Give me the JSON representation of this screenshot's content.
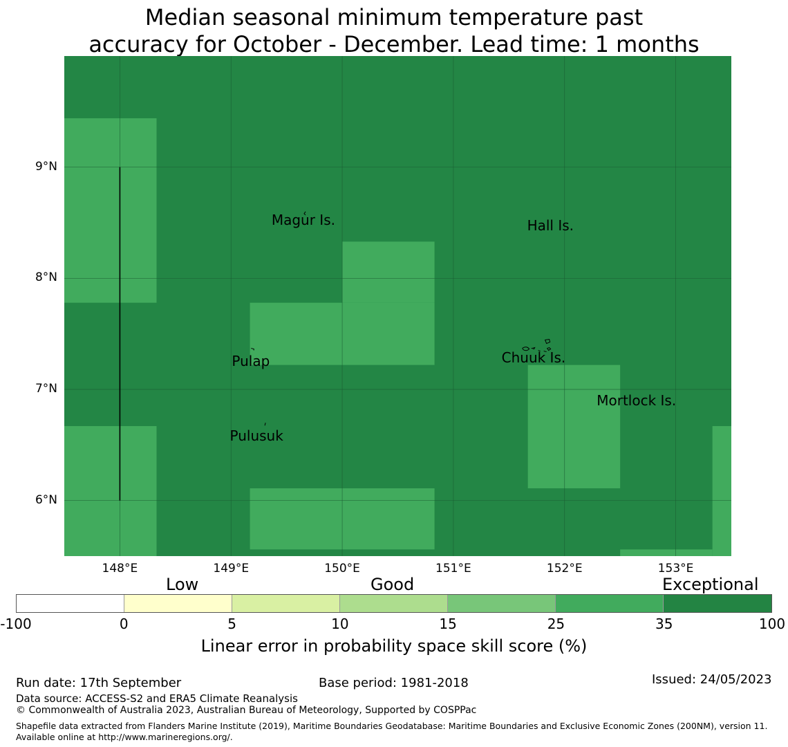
{
  "title": {
    "line1": "Median seasonal minimum temperature past",
    "line2": "accuracy for October - December. Lead time: 1 months"
  },
  "map": {
    "extent": {
      "lon": [
        147.5,
        153.5
      ],
      "lat": [
        5.5,
        10.0
      ]
    },
    "colors": {
      "exceptional": "#238645",
      "very_good": "#41ab5d",
      "coast": "#000000",
      "grid": "#1a5c32"
    },
    "lat_ticks": [
      {
        "value": 9,
        "label": "9°N"
      },
      {
        "value": 8,
        "label": "8°N"
      },
      {
        "value": 7,
        "label": "7°N"
      },
      {
        "value": 6,
        "label": "6°N"
      }
    ],
    "lon_ticks": [
      {
        "value": 148,
        "label": "148°E"
      },
      {
        "value": 149,
        "label": "149°E"
      },
      {
        "value": 150,
        "label": "150°E"
      },
      {
        "value": 151,
        "label": "151°E"
      },
      {
        "value": 152,
        "label": "152°E"
      },
      {
        "value": 153,
        "label": "153°E"
      }
    ],
    "cells_25_35": [
      {
        "lon": [
          147.5,
          148.33
        ],
        "lat": [
          7.78,
          9.44
        ]
      },
      {
        "lon": [
          149.17,
          150.83
        ],
        "lat": [
          7.22,
          7.78
        ]
      },
      {
        "lon": [
          150.0,
          150.83
        ],
        "lat": [
          7.78,
          8.33
        ]
      },
      {
        "lon": [
          147.5,
          148.33
        ],
        "lat": [
          5.5,
          6.67
        ]
      },
      {
        "lon": [
          149.17,
          150.83
        ],
        "lat": [
          5.56,
          6.11
        ]
      },
      {
        "lon": [
          151.67,
          152.5
        ],
        "lat": [
          6.11,
          7.22
        ]
      },
      {
        "lon": [
          152.5,
          153.33
        ],
        "lat": [
          5.5,
          5.56
        ]
      },
      {
        "lon": [
          153.33,
          153.5
        ],
        "lat": [
          5.5,
          6.67
        ]
      }
    ],
    "boundary_line": {
      "lon": 148,
      "lat": [
        6,
        9
      ]
    },
    "places": [
      {
        "name": "Magur Is.",
        "lon": 149.7,
        "lat": 8.6
      },
      {
        "name": "Hall Is.",
        "lon": 151.8,
        "lat": 8.55
      },
      {
        "name": "Pulap",
        "lon": 149.2,
        "lat": 7.35
      },
      {
        "name": "Chuuk Is.",
        "lon": 151.85,
        "lat": 7.4
      },
      {
        "name": "Mortlock Is.",
        "lon": 152.6,
        "lat": 7.0
      },
      {
        "name": "Pulusuk",
        "lon": 149.3,
        "lat": 6.68
      }
    ]
  },
  "legend": {
    "categories": [
      "Low",
      "Good",
      "Exceptional"
    ],
    "bins": [
      {
        "from": "-100",
        "to": "0",
        "color": "#ffffff"
      },
      {
        "from": "0",
        "to": "5",
        "color": "#ffffcc"
      },
      {
        "from": "5",
        "to": "10",
        "color": "#d9f0a3"
      },
      {
        "from": "10",
        "to": "15",
        "color": "#addd8e"
      },
      {
        "from": "15",
        "to": "25",
        "color": "#78c679"
      },
      {
        "from": "25",
        "to": "35",
        "color": "#41ab5d"
      },
      {
        "from": "35",
        "to": "100",
        "color": "#238443"
      }
    ],
    "ticks": [
      "-100",
      "0",
      "5",
      "10",
      "15",
      "25",
      "35",
      "100"
    ],
    "label": "Linear error in probability space skill score (%)"
  },
  "footer": {
    "run_date": "Run date: 17th September",
    "base_period": "Base period: 1981-2018",
    "issued": "Issued: 24/05/2023",
    "data_source": "Data source: ACCESS-S2 and ERA5 Climate Reanalysis",
    "copyright": "© Commonwealth of Australia 2023, Australian Bureau of Meteorology, Supported by COSPPac",
    "shapefile": "Shapefile data extracted from Flanders Marine Institute (2019), Maritime Boundaries Geodatabase: Maritime Boundaries and Exclusive Economic Zones (200NM), version 11. Available online at http://www.marineregions.org/."
  }
}
